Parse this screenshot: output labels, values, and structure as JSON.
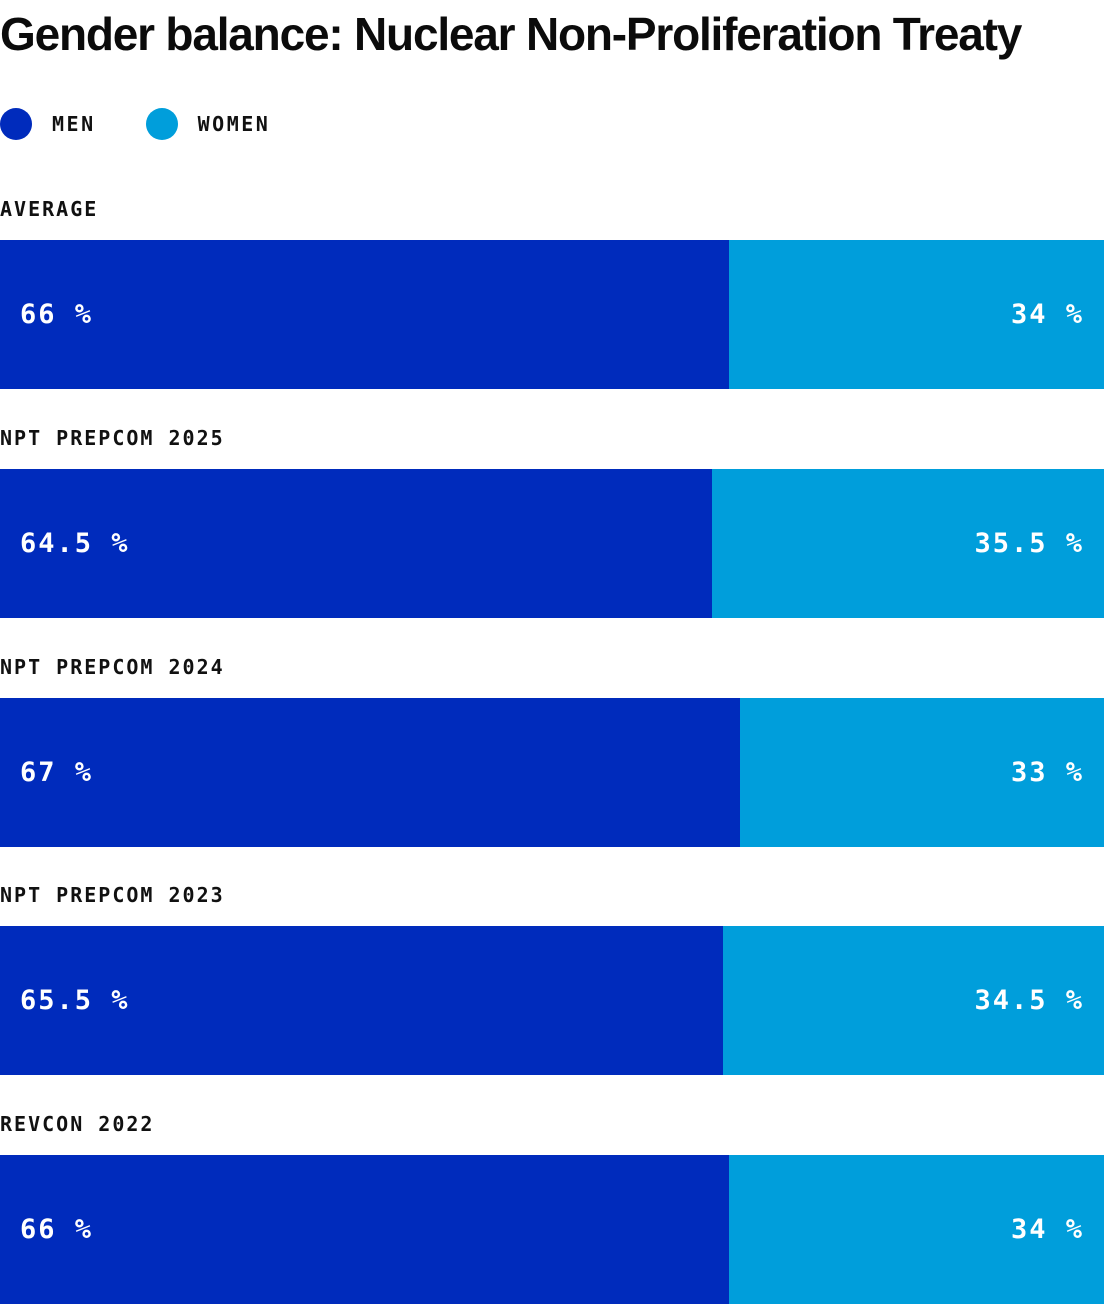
{
  "chart_data": {
    "type": "bar",
    "orientation": "horizontal",
    "stacked": true,
    "title": "Gender balance: Nuclear Non-Proliferation Treaty",
    "series": [
      {
        "name": "MEN",
        "color": "#002bbc"
      },
      {
        "name": "WOMEN",
        "color": "#009edb"
      }
    ],
    "rows": [
      {
        "label": "AVERAGE",
        "values": [
          66,
          34
        ],
        "value_labels": [
          "66 %",
          "34 %"
        ]
      },
      {
        "label": "NPT PREPCOM 2025",
        "values": [
          64.5,
          35.5
        ],
        "value_labels": [
          "64.5 %",
          "35.5 %"
        ]
      },
      {
        "label": "NPT PREPCOM 2024",
        "values": [
          67,
          33
        ],
        "value_labels": [
          "67 %",
          "33 %"
        ]
      },
      {
        "label": "NPT PREPCOM 2023",
        "values": [
          65.5,
          34.5
        ],
        "value_labels": [
          "65.5 %",
          "34.5 %"
        ]
      },
      {
        "label": "REVCON 2022",
        "values": [
          66,
          34
        ],
        "value_labels": [
          "66 %",
          "34 %"
        ]
      }
    ],
    "xlim": [
      0,
      100
    ],
    "legend": "top-left",
    "grid": false
  }
}
